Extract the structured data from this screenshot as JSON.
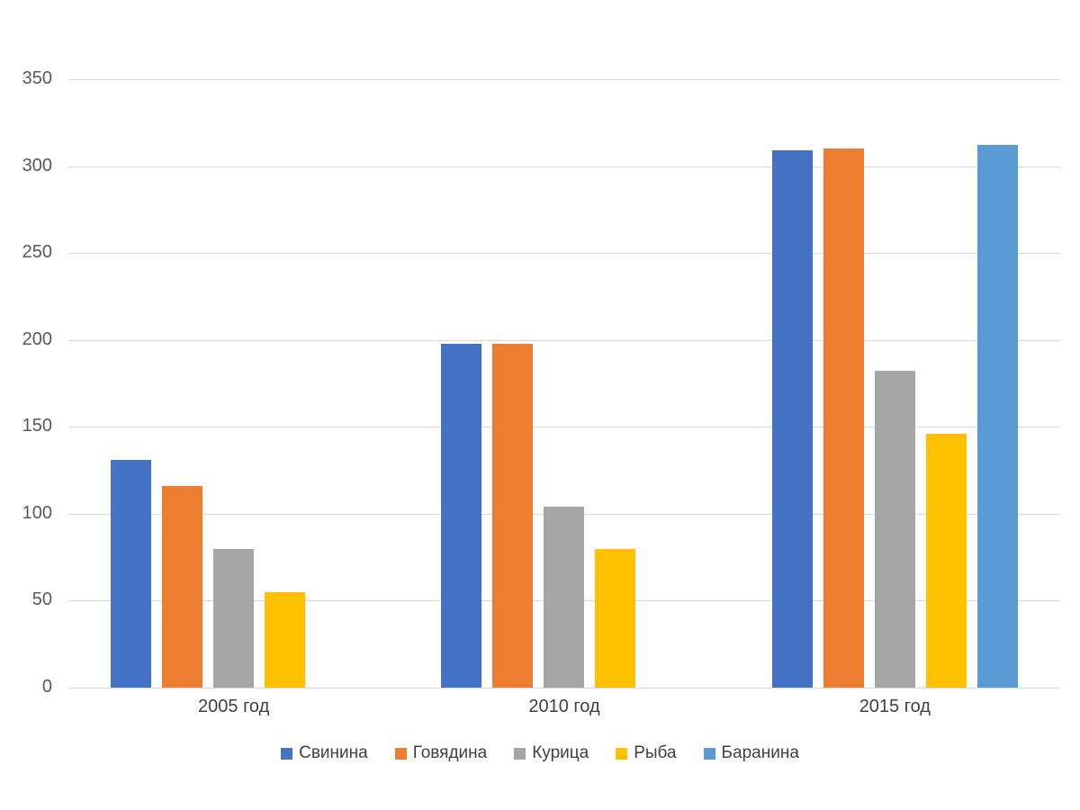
{
  "chart_data": {
    "type": "bar",
    "title": "",
    "categories": [
      "2005 год",
      "2010 год",
      "2015 год"
    ],
    "series": [
      {
        "name": "Свинина",
        "color": "#4472c4",
        "values": [
          131,
          198,
          309
        ]
      },
      {
        "name": "Говядина",
        "color": "#ed7d31",
        "values": [
          116,
          198,
          310
        ]
      },
      {
        "name": "Курица",
        "color": "#a5a5a5",
        "values": [
          80,
          104,
          182
        ]
      },
      {
        "name": "Рыба",
        "color": "#ffc000",
        "values": [
          55,
          80,
          146
        ]
      },
      {
        "name": "Баранина",
        "color": "#5b9bd5",
        "values": [
          null,
          null,
          312
        ]
      }
    ],
    "ylim": [
      0,
      350
    ],
    "yticks": [
      0,
      50,
      100,
      150,
      200,
      250,
      300,
      350
    ],
    "grid": true,
    "legend_position": "bottom",
    "colors": {
      "gridline": "#d9d9d9",
      "axis_line": "#d9d9d9",
      "tick_text": "#595959",
      "category_text": "#404040",
      "legend_text": "#404040",
      "background": "#ffffff"
    }
  }
}
